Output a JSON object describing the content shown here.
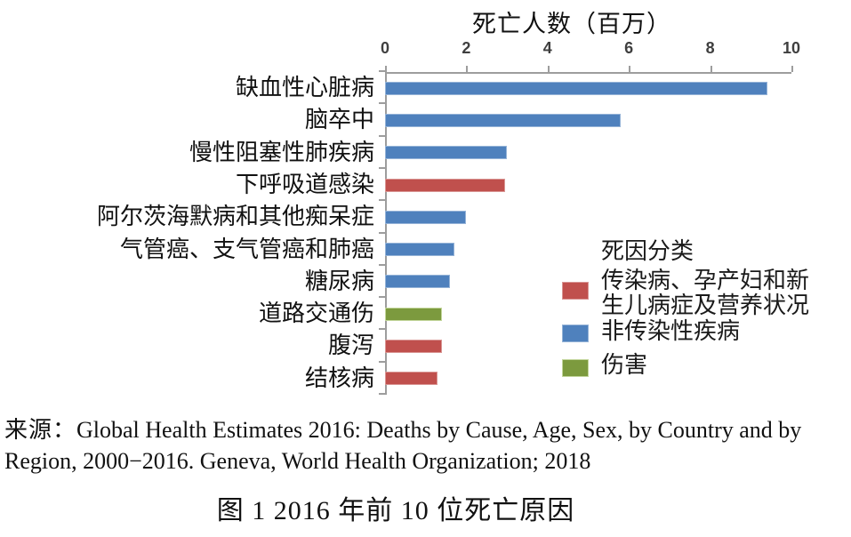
{
  "chart_data": {
    "type": "bar",
    "orientation": "horizontal",
    "title": "死亡人数（百万）",
    "xlabel": "死亡人数（百万）",
    "ylabel": "",
    "xlim": [
      0,
      10
    ],
    "xticks": [
      0,
      2,
      4,
      6,
      8,
      10
    ],
    "grid": false,
    "categories": [
      "缺血性心脏病",
      "脑卒中",
      "慢性阻塞性肺疾病",
      "下呼吸道感染",
      "阿尔茨海默病和其他痴呆症",
      "气管癌、支气管癌和肺癌",
      "糖尿病",
      "道路交通伤",
      "腹泻",
      "结核病"
    ],
    "values": [
      9.4,
      5.8,
      3.0,
      2.95,
      2.0,
      1.7,
      1.6,
      1.4,
      1.4,
      1.3
    ],
    "groups": [
      "ncd",
      "ncd",
      "ncd",
      "cmnn",
      "ncd",
      "ncd",
      "ncd",
      "injury",
      "cmnn",
      "cmnn"
    ],
    "colors": {
      "cmnn": {
        "fill": "#C0504D",
        "border": "#D99694"
      },
      "ncd": {
        "fill": "#4F81BD",
        "border": "#95B3D7"
      },
      "injury": {
        "fill": "#7C9A3E",
        "border": "#C3D69B"
      }
    },
    "legend": {
      "title": "死因分类",
      "position": "right-middle",
      "items": [
        {
          "label": "传染病、孕产妇和新生儿病症及营养状况",
          "group": "cmnn",
          "color": "#C0504D"
        },
        {
          "label": "非传染性疾病",
          "group": "ncd",
          "color": "#4F81BD"
        },
        {
          "label": "伤害",
          "group": "injury",
          "color": "#7C9A3E"
        }
      ]
    }
  },
  "source": {
    "prefix": "来源：",
    "line1": "Global Health Estimates 2016: Deaths by Cause, Age, Sex, by Country and by",
    "line2": "Region, 2000−2016. Geneva, World Health Organization; 2018"
  },
  "caption": "图 1  2016 年前 10 位死亡原因"
}
